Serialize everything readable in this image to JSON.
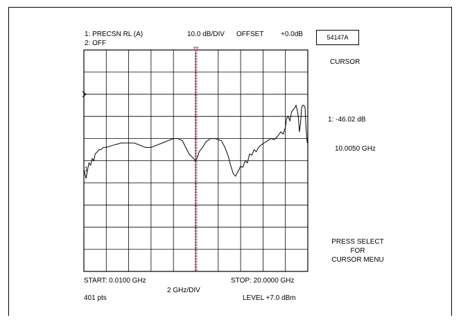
{
  "header": {
    "channel1": "1:  PRECSN RL (A)",
    "channel2": "2:  OFF",
    "scale": "10.0 dB/DIV",
    "offset_label": "OFFSET",
    "offset_value": "+0.0dB",
    "model": "54147A"
  },
  "side_panel": {
    "title": "CURSOR",
    "readout_value": "1: -46.02 dB",
    "readout_freq": "10.0050 GHz",
    "prompt_line1": "PRESS SELECT",
    "prompt_line2": "FOR",
    "prompt_line3": "CURSOR MENU"
  },
  "footer": {
    "start": "START: 0.0100 GHz",
    "stop": "STOP: 20.0000 GHz",
    "xscale": "2 GHz/DIV",
    "points": "401 pts",
    "level": "LEVEL +7.0 dBm"
  },
  "trace_label": "1",
  "colors": {
    "cursor": "#d0507a",
    "trace": "#000000",
    "grid": "#000000"
  },
  "chart_data": {
    "type": "line",
    "x_unit": "GHz",
    "y_unit": "dB",
    "xlim": [
      0.01,
      20.0
    ],
    "x_divisions": 10,
    "y_divisions": 10,
    "y_per_div": 10,
    "grid": true,
    "cursor": {
      "x": 10.005,
      "y": -46.02
    },
    "series": [
      {
        "x": [
          0.0,
          0.2,
          0.3,
          0.45,
          0.6,
          0.75,
          0.9,
          1.0,
          1.2,
          1.35,
          1.5,
          1.75,
          2.0,
          2.3,
          2.6,
          3.0,
          3.3,
          3.6,
          4.0,
          4.5,
          5.0,
          5.5,
          6.0,
          6.5,
          7.0,
          7.5,
          8.0,
          8.4,
          8.8,
          9.1,
          9.4,
          9.6,
          9.8,
          9.95,
          10.1,
          10.3,
          10.6,
          10.9,
          11.3,
          11.7,
          12.0,
          12.3,
          12.6,
          12.9,
          13.1,
          13.35,
          13.55,
          13.75,
          14.0,
          14.2,
          14.4,
          14.6,
          14.8,
          15.0,
          15.2,
          15.4,
          15.6,
          15.8,
          16.1,
          16.4,
          16.7,
          17.0,
          17.3,
          17.6,
          17.8,
          18.0,
          18.1,
          18.25,
          18.4,
          18.55,
          18.7,
          18.85,
          18.95,
          19.05,
          19.15,
          19.25,
          19.35,
          19.45,
          19.55,
          19.65,
          19.75,
          19.85,
          19.95,
          20.0
        ],
        "y": [
          -54,
          -58,
          -55,
          -51,
          -52,
          -49,
          -50,
          -47,
          -46,
          -45,
          -45,
          -44,
          -44,
          -43.5,
          -43,
          -42.5,
          -42,
          -42,
          -42,
          -42,
          -43,
          -44,
          -44,
          -43,
          -42,
          -41,
          -40,
          -40,
          -41,
          -44,
          -47,
          -48,
          -49,
          -50,
          -49,
          -46,
          -44,
          -41.5,
          -40,
          -40,
          -40.5,
          -41,
          -44,
          -48,
          -52,
          -56,
          -57,
          -55,
          -52.5,
          -53,
          -50,
          -51,
          -47,
          -47.5,
          -45,
          -46,
          -44,
          -43,
          -42,
          -41,
          -40,
          -40.5,
          -39,
          -37,
          -38,
          -35,
          -31,
          -30,
          -32,
          -28,
          -27,
          -26,
          -25,
          -27,
          -30,
          -37,
          -33,
          -26,
          -25,
          -25,
          -26,
          -36,
          -42,
          -40
        ]
      }
    ]
  }
}
